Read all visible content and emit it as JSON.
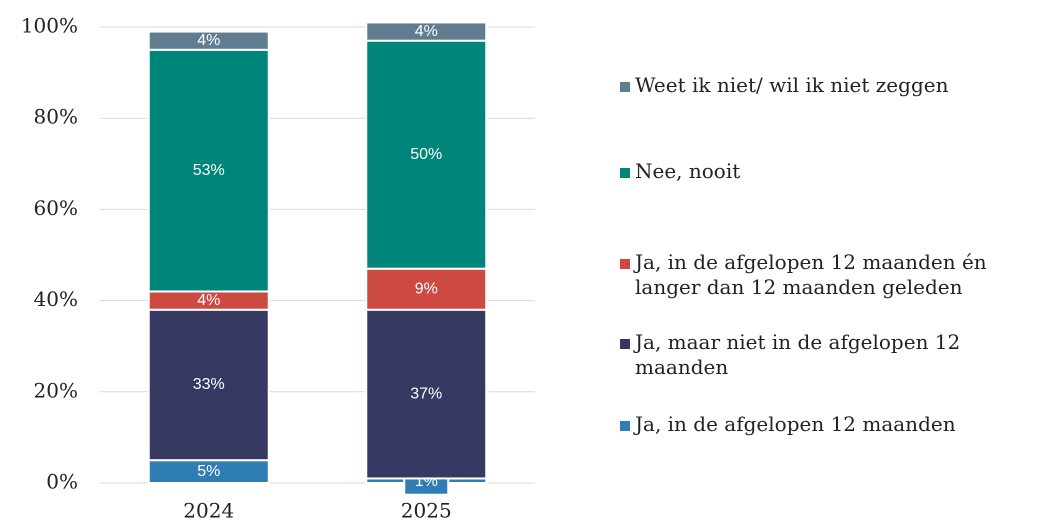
{
  "chart_data": {
    "type": "stacked_bar",
    "categories": [
      "2024",
      "2025"
    ],
    "series": [
      {
        "name": "Ja, in de afgelopen 12 maanden",
        "color": "#2e7db5",
        "values": [
          5,
          1
        ],
        "value_labels": [
          "5%",
          "1%"
        ]
      },
      {
        "name": "Ja, maar niet in de afgelopen 12 maanden",
        "color": "#363a63",
        "values": [
          33,
          37
        ],
        "value_labels": [
          "33%",
          "37%"
        ]
      },
      {
        "name": "Ja, in de afgelopen 12 maanden én langer dan 12 maanden geleden",
        "color": "#cc4a42",
        "values": [
          4,
          9
        ],
        "value_labels": [
          "4%",
          "9%"
        ]
      },
      {
        "name": "Nee, nooit",
        "color": "#00857a",
        "values": [
          53,
          50
        ],
        "value_labels": [
          "53%",
          "50%"
        ]
      },
      {
        "name": "Weet ik niet/ wil ik niet zeggen",
        "color": "#607d8f",
        "values": [
          4,
          4
        ],
        "value_labels": [
          "4%",
          "4%"
        ]
      }
    ],
    "ylim": [
      0,
      100
    ],
    "yticks": [
      {
        "value": 0,
        "label": "0%"
      },
      {
        "value": 20,
        "label": "20%"
      },
      {
        "value": 40,
        "label": "40%"
      },
      {
        "value": 60,
        "label": "60%"
      },
      {
        "value": 80,
        "label": "80%"
      },
      {
        "value": 100,
        "label": "100%"
      }
    ],
    "grid": true,
    "legend": "right"
  }
}
